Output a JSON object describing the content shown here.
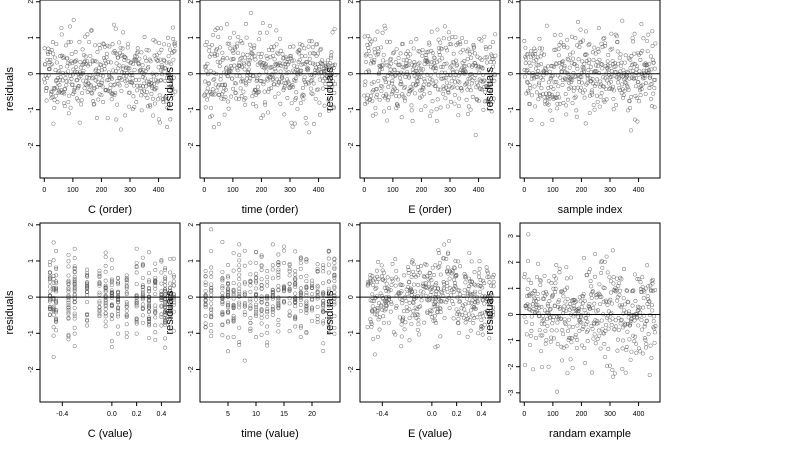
{
  "figure": {
    "point_color": "#555555",
    "line_color": "#000000",
    "panels": [
      {
        "xlabel": "C (order)",
        "ylabel": "residuals",
        "xticks": [
          0,
          100,
          200,
          300,
          400
        ],
        "xtick_labels": [
          "0",
          "100",
          "200",
          "300",
          "400"
        ],
        "xlim": [
          -15,
          475
        ],
        "yticks": [
          -2,
          -1,
          0,
          1,
          2
        ],
        "ytick_labels": [
          "-2",
          "-1",
          "0",
          "1",
          "2"
        ],
        "ylim": [
          -2.9,
          2.05
        ],
        "seed": 11,
        "style": "order",
        "n": 460,
        "sd": 0.55
      },
      {
        "xlabel": "time (order)",
        "ylabel": "residuals",
        "xticks": [
          0,
          100,
          200,
          300,
          400
        ],
        "xtick_labels": [
          "0",
          "100",
          "200",
          "300",
          "400"
        ],
        "xlim": [
          -15,
          475
        ],
        "yticks": [
          -2,
          -1,
          0,
          1,
          2
        ],
        "ytick_labels": [
          "-2",
          "-1",
          "0",
          "1",
          "2"
        ],
        "ylim": [
          -2.9,
          2.05
        ],
        "seed": 23,
        "style": "order",
        "n": 460,
        "sd": 0.55
      },
      {
        "xlabel": "E (order)",
        "ylabel": "residuals",
        "xticks": [
          0,
          100,
          200,
          300,
          400
        ],
        "xtick_labels": [
          "0",
          "100",
          "200",
          "300",
          "400"
        ],
        "xlim": [
          -15,
          475
        ],
        "yticks": [
          -2,
          -1,
          0,
          1,
          2
        ],
        "ytick_labels": [
          "-2",
          "-1",
          "0",
          "1",
          "2"
        ],
        "ylim": [
          -2.9,
          2.05
        ],
        "seed": 37,
        "style": "order",
        "n": 460,
        "sd": 0.55
      },
      {
        "xlabel": "sample index",
        "ylabel": "residuals",
        "xticks": [
          0,
          100,
          200,
          300,
          400
        ],
        "xtick_labels": [
          "0",
          "100",
          "200",
          "300",
          "400"
        ],
        "xlim": [
          -15,
          475
        ],
        "yticks": [
          -2,
          -1,
          0,
          1,
          2
        ],
        "ytick_labels": [
          "-2",
          "-1",
          "0",
          "1",
          "2"
        ],
        "ylim": [
          -2.9,
          2.05
        ],
        "seed": 41,
        "style": "order",
        "n": 460,
        "sd": 0.55
      },
      {
        "xlabel": "C (value)",
        "ylabel": "residuals",
        "xticks": [
          -0.4,
          0.0,
          0.2,
          0.4
        ],
        "xtick_labels": [
          "-0.4",
          "0.0",
          "0.2",
          "0.4"
        ],
        "xlim": [
          -0.58,
          0.55
        ],
        "yticks": [
          -2,
          -1,
          0,
          1,
          2
        ],
        "ytick_labels": [
          "-2",
          "-1",
          "0",
          "1",
          "2"
        ],
        "ylim": [
          -2.9,
          2.05
        ],
        "seed": 53,
        "style": "columns",
        "n": 460,
        "sd": 0.55,
        "columns": [
          -0.5,
          -0.47,
          -0.45,
          -0.35,
          -0.3,
          -0.2,
          -0.1,
          -0.05,
          0.0,
          0.05,
          0.12,
          0.2,
          0.25,
          0.3,
          0.35,
          0.4,
          0.43,
          0.47,
          0.5
        ]
      },
      {
        "xlabel": "time (value)",
        "ylabel": "residuals",
        "xticks": [
          5,
          10,
          15,
          20
        ],
        "xtick_labels": [
          "5",
          "10",
          "15",
          "20"
        ],
        "xlim": [
          0,
          25
        ],
        "yticks": [
          -2,
          -1,
          0,
          1,
          2
        ],
        "ytick_labels": [
          "-2",
          "-1",
          "0",
          "1",
          "2"
        ],
        "ylim": [
          -2.9,
          2.05
        ],
        "seed": 67,
        "style": "columns",
        "n": 460,
        "sd": 0.55,
        "columns": [
          1,
          2,
          4,
          5,
          6,
          7,
          8,
          9,
          10,
          11,
          12,
          13,
          14,
          15,
          16,
          17,
          18,
          19,
          20,
          21,
          22,
          23,
          24
        ]
      },
      {
        "xlabel": "E (value)",
        "ylabel": "residuals",
        "xticks": [
          -0.4,
          0.0,
          0.2,
          0.4
        ],
        "xtick_labels": [
          "-0.4",
          "0.0",
          "0.2",
          "0.4"
        ],
        "xlim": [
          -0.58,
          0.55
        ],
        "yticks": [
          -2,
          -1,
          0,
          1,
          2
        ],
        "ytick_labels": [
          "-2",
          "-1",
          "0",
          "1",
          "2"
        ],
        "ylim": [
          -2.9,
          2.05
        ],
        "seed": 79,
        "style": "value",
        "n": 460,
        "sd": 0.55
      },
      {
        "xlabel": "randam example",
        "ylabel": "residuals",
        "xticks": [
          0,
          100,
          200,
          300,
          400
        ],
        "xtick_labels": [
          "0",
          "100",
          "200",
          "300",
          "400"
        ],
        "xlim": [
          -15,
          475
        ],
        "yticks": [
          -3,
          -2,
          -1,
          0,
          1,
          2,
          3
        ],
        "ytick_labels": [
          "-3",
          "-2",
          "-1",
          "0",
          "1",
          "2",
          "3"
        ],
        "ylim": [
          -3.35,
          3.5
        ],
        "seed": 97,
        "style": "order",
        "n": 460,
        "sd": 1.0
      }
    ]
  },
  "chart_data": [
    {
      "type": "scatter",
      "xlabel": "C (order)",
      "ylabel": "residuals",
      "xlim": [
        -15,
        475
      ],
      "ylim": [
        -2.9,
        2.05
      ],
      "reference_line_y": 0,
      "x_range": [
        0,
        460
      ],
      "y_range": [
        -2.7,
        1.85
      ]
    },
    {
      "type": "scatter",
      "xlabel": "time (order)",
      "ylabel": "residuals",
      "xlim": [
        -15,
        475
      ],
      "ylim": [
        -2.9,
        2.05
      ],
      "reference_line_y": 0,
      "x_range": [
        0,
        460
      ],
      "y_range": [
        -2.7,
        1.85
      ]
    },
    {
      "type": "scatter",
      "xlabel": "E (order)",
      "ylabel": "residuals",
      "xlim": [
        -15,
        475
      ],
      "ylim": [
        -2.9,
        2.05
      ],
      "reference_line_y": 0,
      "x_range": [
        0,
        460
      ],
      "y_range": [
        -2.7,
        1.85
      ]
    },
    {
      "type": "scatter",
      "xlabel": "sample index",
      "ylabel": "residuals",
      "xlim": [
        -15,
        475
      ],
      "ylim": [
        -2.9,
        2.05
      ],
      "reference_line_y": 0,
      "x_range": [
        0,
        460
      ],
      "y_range": [
        -2.7,
        1.85
      ]
    },
    {
      "type": "scatter",
      "xlabel": "C (value)",
      "ylabel": "residuals",
      "xlim": [
        -0.58,
        0.55
      ],
      "ylim": [
        -2.9,
        2.05
      ],
      "reference_line_y": 0,
      "x_range": [
        -0.5,
        0.5
      ],
      "y_range": [
        -2.7,
        1.85
      ]
    },
    {
      "type": "scatter",
      "xlabel": "time (value)",
      "ylabel": "residuals",
      "xlim": [
        0,
        25
      ],
      "ylim": [
        -2.9,
        2.05
      ],
      "reference_line_y": 0,
      "x_range": [
        1,
        24
      ],
      "y_range": [
        -2.7,
        1.85
      ]
    },
    {
      "type": "scatter",
      "xlabel": "E (value)",
      "ylabel": "residuals",
      "xlim": [
        -0.58,
        0.55
      ],
      "ylim": [
        -2.9,
        2.05
      ],
      "reference_line_y": 0,
      "x_range": [
        -0.5,
        0.5
      ],
      "y_range": [
        -2.7,
        1.85
      ]
    },
    {
      "type": "scatter",
      "xlabel": "randam example",
      "ylabel": "residuals",
      "xlim": [
        -15,
        475
      ],
      "ylim": [
        -3.35,
        3.5
      ],
      "reference_line_y": 0,
      "x_range": [
        0,
        460
      ],
      "y_range": [
        -3.1,
        3.2
      ]
    }
  ]
}
